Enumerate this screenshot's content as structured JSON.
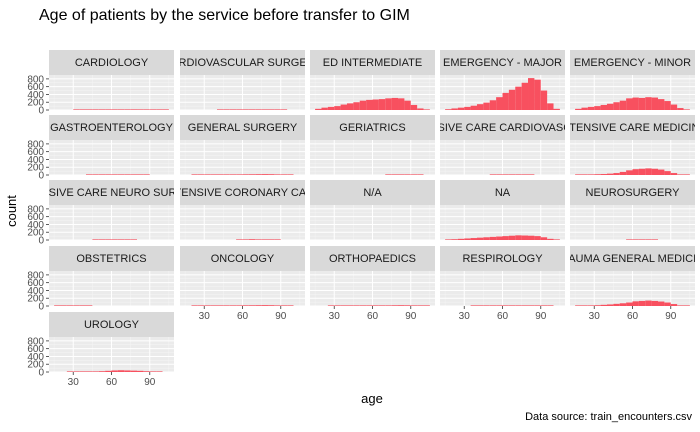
{
  "title": "Age of patients by the service before transfer to GIM",
  "caption": "Data source: train_encounters.csv",
  "chart_data": {
    "type": "histogram-facet",
    "title": "Age of patients by the service before transfer to GIM",
    "xlabel": "age",
    "ylabel": "count",
    "x_ticks": [
      30,
      60,
      90
    ],
    "y_ticks": [
      0,
      200,
      400,
      600,
      800
    ],
    "xlim": [
      11,
      109
    ],
    "ylim": [
      0,
      900
    ],
    "bin_width": 5,
    "bar_color": "#f8505f",
    "panel_background": "#ebebeb",
    "strip_background": "#d9d9d9",
    "bin_starts": [
      15,
      20,
      25,
      30,
      35,
      40,
      45,
      50,
      55,
      60,
      65,
      70,
      75,
      80,
      85,
      90,
      95,
      100
    ],
    "panels": [
      {
        "label": "CARDIOLOGY",
        "counts": [
          0,
          0,
          0,
          2,
          3,
          5,
          6,
          8,
          10,
          12,
          14,
          15,
          16,
          15,
          13,
          10,
          4,
          1
        ]
      },
      {
        "label": "CARDIOVASCULAR SURGERY",
        "counts": [
          0,
          0,
          0,
          0,
          0,
          1,
          1,
          2,
          2,
          3,
          3,
          3,
          3,
          2,
          2,
          1,
          0,
          0
        ]
      },
      {
        "label": "ED INTERMEDIATE",
        "counts": [
          30,
          60,
          80,
          100,
          140,
          170,
          200,
          240,
          260,
          270,
          280,
          300,
          310,
          300,
          240,
          130,
          40,
          10
        ]
      },
      {
        "label": "EMERGENCY - MAJOR",
        "counts": [
          20,
          40,
          60,
          80,
          110,
          150,
          190,
          250,
          330,
          440,
          520,
          600,
          700,
          820,
          780,
          500,
          170,
          30
        ]
      },
      {
        "label": "EMERGENCY - MINOR",
        "counts": [
          30,
          60,
          80,
          100,
          130,
          160,
          200,
          240,
          300,
          320,
          310,
          330,
          320,
          280,
          230,
          140,
          50,
          10
        ]
      },
      {
        "label": "GASTROENTEROLOGY",
        "counts": [
          0,
          0,
          0,
          0,
          0,
          1,
          1,
          1,
          1,
          1,
          1,
          1,
          1,
          1,
          1,
          0,
          0,
          0
        ]
      },
      {
        "label": "GENERAL SURGERY",
        "counts": [
          0,
          1,
          2,
          3,
          5,
          7,
          9,
          12,
          15,
          17,
          18,
          20,
          22,
          20,
          15,
          8,
          3,
          0
        ]
      },
      {
        "label": "GERIATRICS",
        "counts": [
          0,
          0,
          0,
          0,
          0,
          0,
          0,
          0,
          0,
          0,
          0,
          1,
          2,
          3,
          3,
          2,
          1,
          0
        ]
      },
      {
        "label": "INTENSIVE CARE CARDIOVASCULAR",
        "counts": [
          0,
          0,
          0,
          0,
          0,
          0,
          0,
          1,
          1,
          1,
          1,
          1,
          1,
          1,
          0,
          0,
          0,
          0
        ]
      },
      {
        "label": "INTENSIVE CARE MEDICINE",
        "counts": [
          5,
          10,
          15,
          20,
          25,
          35,
          50,
          80,
          120,
          150,
          160,
          170,
          160,
          140,
          100,
          50,
          15,
          3
        ]
      },
      {
        "label": "INTENSIVE CARE NEURO SURGERY",
        "counts": [
          0,
          0,
          0,
          0,
          0,
          0,
          1,
          1,
          1,
          1,
          1,
          1,
          1,
          0,
          0,
          0,
          0,
          0
        ]
      },
      {
        "label": "INTENSIVE CORONARY CARE",
        "counts": [
          0,
          0,
          0,
          0,
          0,
          0,
          0,
          0,
          2,
          5,
          20,
          8,
          4,
          2,
          1,
          0,
          0,
          0
        ]
      },
      {
        "label": "N/A",
        "counts": [
          0,
          0,
          0,
          0,
          0,
          0,
          0,
          0,
          0,
          0,
          0,
          0,
          0,
          0,
          0,
          0,
          0,
          0
        ]
      },
      {
        "label": "NA",
        "counts": [
          10,
          20,
          30,
          40,
          50,
          60,
          70,
          80,
          90,
          100,
          110,
          120,
          115,
          110,
          100,
          70,
          30,
          5
        ]
      },
      {
        "label": "NEUROSURGERY",
        "counts": [
          0,
          0,
          0,
          0,
          0,
          0,
          0,
          0,
          2,
          5,
          10,
          5,
          2,
          0,
          0,
          0,
          0,
          0
        ]
      },
      {
        "label": "OBSTETRICS",
        "counts": [
          1,
          3,
          5,
          5,
          3,
          1,
          0,
          0,
          0,
          0,
          0,
          0,
          0,
          0,
          0,
          0,
          0,
          0
        ]
      },
      {
        "label": "ONCOLOGY",
        "counts": [
          0,
          1,
          2,
          3,
          5,
          7,
          9,
          12,
          15,
          17,
          18,
          20,
          22,
          20,
          15,
          8,
          3,
          0
        ]
      },
      {
        "label": "ORTHOPAEDICS",
        "counts": [
          0,
          0,
          1,
          2,
          3,
          4,
          5,
          6,
          8,
          10,
          12,
          15,
          18,
          20,
          18,
          12,
          5,
          1
        ]
      },
      {
        "label": "RESPIROLOGY",
        "counts": [
          0,
          0,
          0,
          0,
          1,
          1,
          2,
          3,
          4,
          5,
          6,
          7,
          8,
          7,
          5,
          3,
          1,
          0
        ]
      },
      {
        "label": "TRAUMA GENERAL MEDICINE",
        "counts": [
          5,
          10,
          15,
          20,
          30,
          40,
          55,
          70,
          90,
          120,
          130,
          140,
          130,
          115,
          90,
          50,
          15,
          3
        ]
      },
      {
        "label": "UROLOGY",
        "counts": [
          0,
          0,
          2,
          4,
          6,
          8,
          12,
          20,
          30,
          40,
          45,
          40,
          35,
          30,
          20,
          10,
          3,
          0
        ]
      }
    ]
  }
}
